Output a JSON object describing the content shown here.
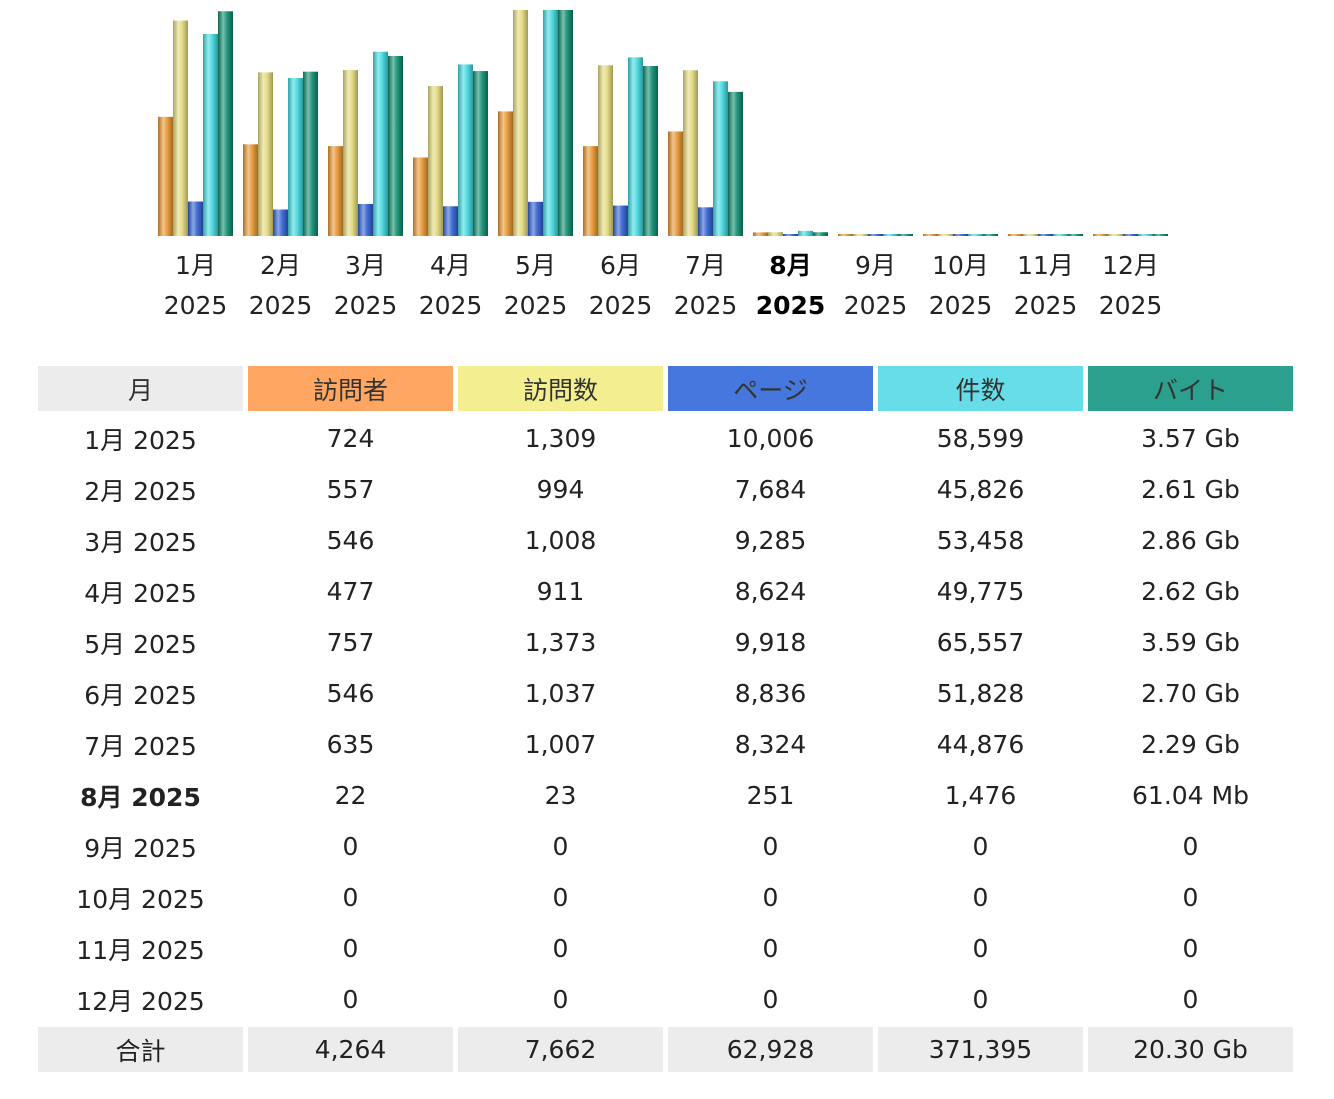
{
  "colors": {
    "visitors": "#e8942e",
    "visits": "#e3d97a",
    "pages": "#2f5fd0",
    "hits": "#40d8e0",
    "bytes": "#0c8a6c"
  },
  "headers": {
    "month": "月",
    "visitors": "訪問者",
    "visits": "訪問数",
    "pages": "ページ",
    "hits": "件数",
    "bytes": "バイト"
  },
  "chart_data": {
    "type": "bar",
    "categories": [
      "1月 2025",
      "2月 2025",
      "3月 2025",
      "4月 2025",
      "5月 2025",
      "6月 2025",
      "7月 2025",
      "8月 2025",
      "9月 2025",
      "10月 2025",
      "11月 2025",
      "12月 2025"
    ],
    "current_index": 7,
    "series": [
      {
        "key": "visitors",
        "values": [
          724,
          557,
          546,
          477,
          757,
          546,
          635,
          22,
          0,
          0,
          0,
          0
        ]
      },
      {
        "key": "visits",
        "values": [
          1309,
          994,
          1008,
          911,
          1373,
          1037,
          1007,
          23,
          0,
          0,
          0,
          0
        ]
      },
      {
        "key": "pages",
        "values": [
          10006,
          7684,
          9285,
          8624,
          9918,
          8836,
          8324,
          251,
          0,
          0,
          0,
          0
        ]
      },
      {
        "key": "hits",
        "values": [
          58599,
          45826,
          53458,
          49775,
          65557,
          51828,
          44876,
          1476,
          0,
          0,
          0,
          0
        ]
      },
      {
        "key": "bytes_gb",
        "values": [
          3.57,
          2.61,
          2.86,
          2.62,
          3.59,
          2.7,
          2.29,
          0.06,
          0,
          0,
          0,
          0
        ]
      }
    ]
  },
  "rows": [
    {
      "month": "1月 2025",
      "visitors": "724",
      "visits": "1,309",
      "pages": "10,006",
      "hits": "58,599",
      "bytes": "3.57 Gb",
      "current": false
    },
    {
      "month": "2月 2025",
      "visitors": "557",
      "visits": "994",
      "pages": "7,684",
      "hits": "45,826",
      "bytes": "2.61 Gb",
      "current": false
    },
    {
      "month": "3月 2025",
      "visitors": "546",
      "visits": "1,008",
      "pages": "9,285",
      "hits": "53,458",
      "bytes": "2.86 Gb",
      "current": false
    },
    {
      "month": "4月 2025",
      "visitors": "477",
      "visits": "911",
      "pages": "8,624",
      "hits": "49,775",
      "bytes": "2.62 Gb",
      "current": false
    },
    {
      "month": "5月 2025",
      "visitors": "757",
      "visits": "1,373",
      "pages": "9,918",
      "hits": "65,557",
      "bytes": "3.59 Gb",
      "current": false
    },
    {
      "month": "6月 2025",
      "visitors": "546",
      "visits": "1,037",
      "pages": "8,836",
      "hits": "51,828",
      "bytes": "2.70 Gb",
      "current": false
    },
    {
      "month": "7月 2025",
      "visitors": "635",
      "visits": "1,007",
      "pages": "8,324",
      "hits": "44,876",
      "bytes": "2.29 Gb",
      "current": false
    },
    {
      "month": "8月 2025",
      "visitors": "22",
      "visits": "23",
      "pages": "251",
      "hits": "1,476",
      "bytes": "61.04 Mb",
      "current": true
    },
    {
      "month": "9月 2025",
      "visitors": "0",
      "visits": "0",
      "pages": "0",
      "hits": "0",
      "bytes": "0",
      "current": false
    },
    {
      "month": "10月 2025",
      "visitors": "0",
      "visits": "0",
      "pages": "0",
      "hits": "0",
      "bytes": "0",
      "current": false
    },
    {
      "month": "11月 2025",
      "visitors": "0",
      "visits": "0",
      "pages": "0",
      "hits": "0",
      "bytes": "0",
      "current": false
    },
    {
      "month": "12月 2025",
      "visitors": "0",
      "visits": "0",
      "pages": "0",
      "hits": "0",
      "bytes": "0",
      "current": false
    }
  ],
  "totals": {
    "label": "合計",
    "visitors": "4,264",
    "visits": "7,662",
    "pages": "62,928",
    "hits": "371,395",
    "bytes": "20.30 Gb"
  }
}
